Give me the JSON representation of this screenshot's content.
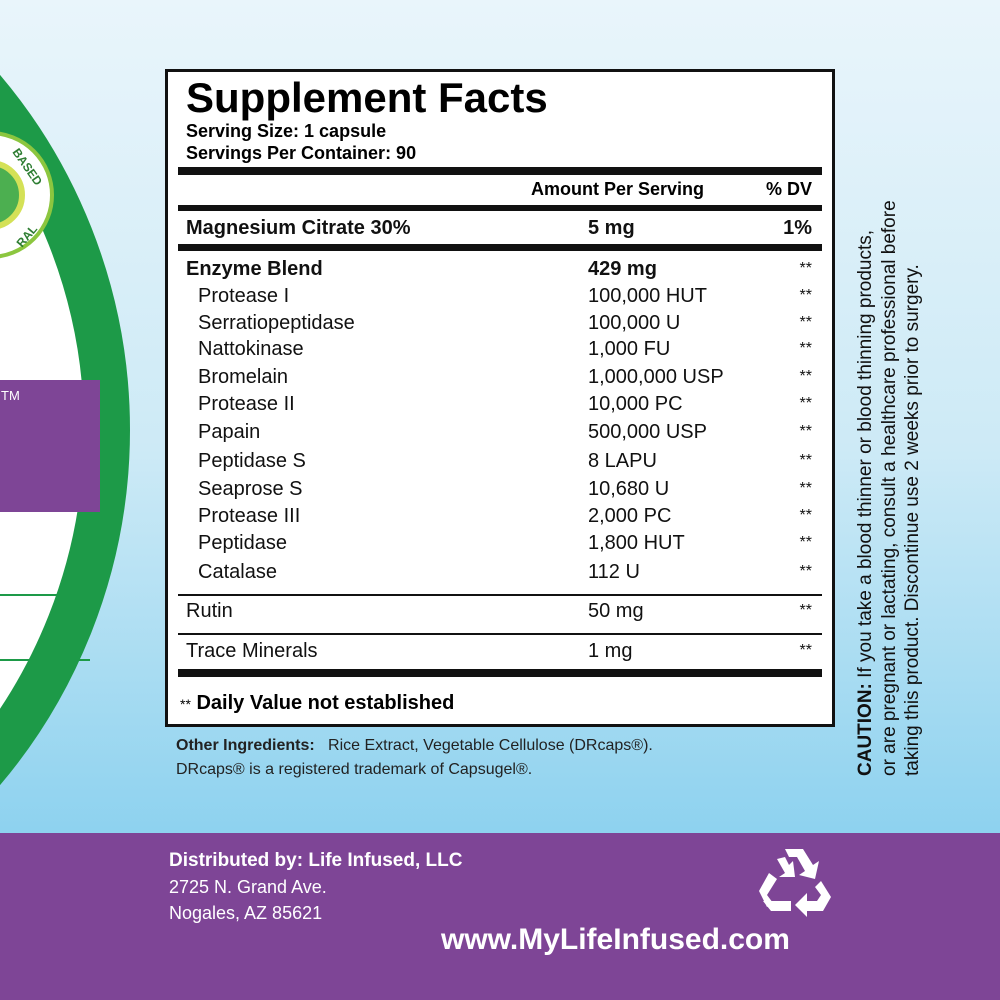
{
  "badge": {
    "top": "BASED",
    "bottom": "RAL",
    "tm": "TM"
  },
  "facts": {
    "title": "Supplement Facts",
    "serving_size": "Serving Size: 1 capsule",
    "servings_per_container": "Servings Per Container: 90",
    "header": {
      "amount": "Amount Per Serving",
      "dv": "% DV"
    },
    "rows": [
      {
        "name": "Magnesium Citrate 30%",
        "amount": "5 mg",
        "dv": "1%"
      },
      {
        "name": "Enzyme Blend",
        "amount": "429 mg",
        "dv": "**"
      },
      {
        "name": "Protease I",
        "amount": "100,000 HUT",
        "dv": "**"
      },
      {
        "name": "Serratiopeptidase",
        "amount": "100,000 U",
        "dv": "**"
      },
      {
        "name": "Nattokinase",
        "amount": "1,000 FU",
        "dv": "**"
      },
      {
        "name": "Bromelain",
        "amount": "1,000,000 USP",
        "dv": "**"
      },
      {
        "name": "Protease II",
        "amount": "10,000 PC",
        "dv": "**"
      },
      {
        "name": "Papain",
        "amount": "500,000 USP",
        "dv": "**"
      },
      {
        "name": "Peptidase S",
        "amount": "8 LAPU",
        "dv": "**"
      },
      {
        "name": "Seaprose S",
        "amount": "10,680 U",
        "dv": "**"
      },
      {
        "name": "Protease III",
        "amount": "2,000 PC",
        "dv": "**"
      },
      {
        "name": "Peptidase",
        "amount": "1,800 HUT",
        "dv": "**"
      },
      {
        "name": "Catalase",
        "amount": "112 U",
        "dv": "**"
      },
      {
        "name": "Rutin",
        "amount": "50 mg",
        "dv": "**"
      },
      {
        "name": "Trace Minerals",
        "amount": "1 mg",
        "dv": "**"
      }
    ],
    "footnote_mark": "**",
    "footnote": "Daily Value not established"
  },
  "other_ingredients": {
    "label": "Other Ingredients:",
    "text": "Rice Extract, Vegetable Cellulose (DRcaps®).",
    "trademark": "DRcaps® is a registered trademark of Capsugel®."
  },
  "caution": {
    "label": "CAUTION:",
    "lines": [
      "If you take a blood thinner or blood thinning  products,",
      "or are pregnant or lactating, consult a healthcare professional before",
      "taking this product. Discontinue use 2 weeks prior to surgery."
    ]
  },
  "footer": {
    "distributor": "Distributed by: Life Infused, LLC",
    "address_1": "2725 N. Grand Ave.",
    "address_2": "Nogales, AZ 85621",
    "website": "www.MyLifeInfused.com"
  }
}
